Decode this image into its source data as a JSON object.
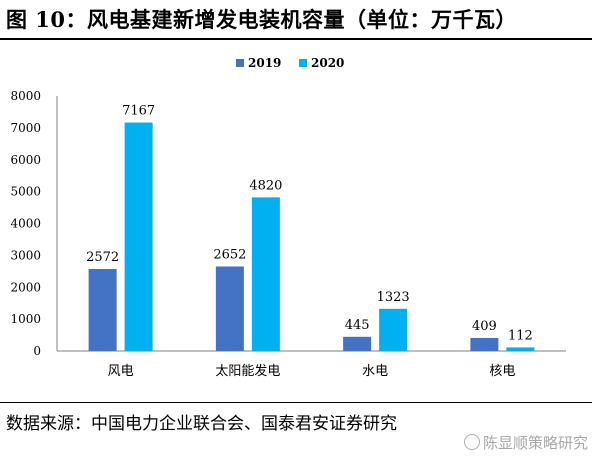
{
  "header": {
    "title": "图 10：风电基建新增发电装机容量（单位：万千瓦）"
  },
  "chart_data": {
    "type": "bar",
    "categories": [
      "风电",
      "太阳能发电",
      "水电",
      "核电"
    ],
    "series": [
      {
        "name": "2019",
        "values": [
          2572,
          2652,
          445,
          409
        ],
        "color": "#4472C4"
      },
      {
        "name": "2020",
        "values": [
          7167,
          4820,
          1323,
          112
        ],
        "color": "#00B0F0"
      }
    ],
    "ylim": [
      0,
      8000
    ],
    "yticks": [
      "0",
      "1000",
      "2000",
      "3000",
      "4000",
      "5000",
      "6000",
      "7000",
      "8000"
    ],
    "legend_position": "top-center",
    "grid": false,
    "title": "",
    "xlabel": "",
    "ylabel": ""
  },
  "footer": {
    "source": "数据来源：中国电力企业联合会、国泰君安证券研究"
  },
  "watermark": {
    "text": "陈显顺策略研究",
    "icon": "wechat-icon"
  }
}
